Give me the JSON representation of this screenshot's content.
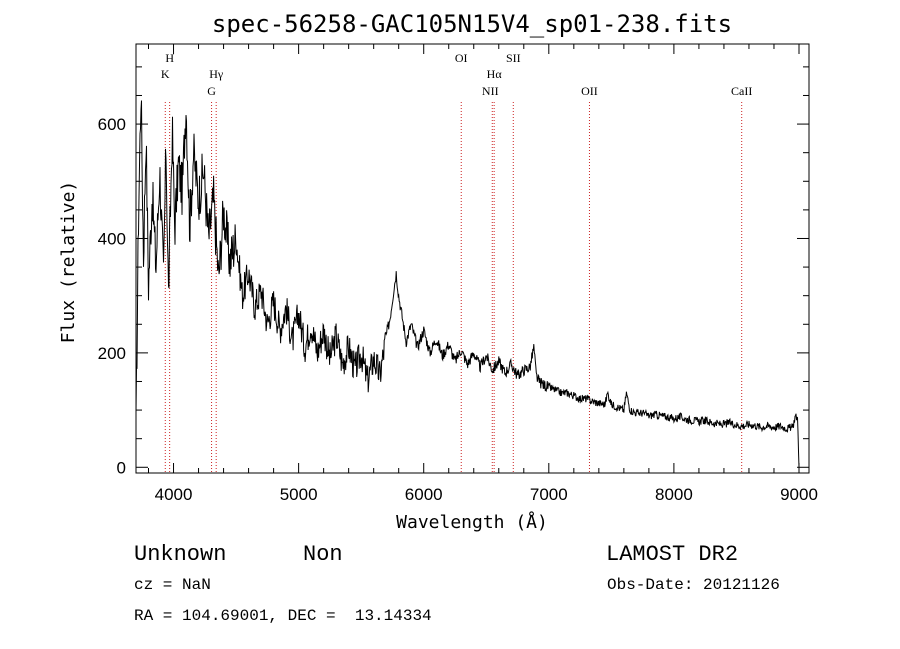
{
  "chart_data": {
    "type": "line",
    "title": "spec-56258-GAC105N15V4_sp01-238.fits",
    "xlabel": "Wavelength (Å)",
    "ylabel": "Flux (relative)",
    "xlim": [
      3700,
      9080
    ],
    "ylim": [
      -10,
      740
    ],
    "xticks": [
      4000,
      5000,
      6000,
      7000,
      8000,
      9000
    ],
    "yticks": [
      0,
      200,
      400,
      600
    ],
    "grid": false,
    "series": [
      {
        "x": [
          3700,
          3720,
          3740,
          3760,
          3780,
          3800,
          3830,
          3860,
          3890,
          3920,
          3940,
          3960,
          3990,
          4010,
          4040,
          4070,
          4100,
          4130,
          4160,
          4200,
          4240,
          4280,
          4320,
          4360,
          4400,
          4450,
          4500,
          4550,
          4600,
          4650,
          4700,
          4750,
          4800,
          4850,
          4900,
          4950,
          5000,
          5050,
          5100,
          5150,
          5200,
          5250,
          5300,
          5350,
          5400,
          5450,
          5500,
          5550,
          5600,
          5650,
          5700,
          5730,
          5760,
          5780,
          5800,
          5830,
          5860,
          5900,
          5950,
          6000,
          6050,
          6100,
          6150,
          6200,
          6250,
          6300,
          6350,
          6400,
          6450,
          6500,
          6550,
          6600,
          6650,
          6700,
          6750,
          6800,
          6850,
          6880,
          6900,
          6920,
          6950,
          7000,
          7050,
          7100,
          7150,
          7200,
          7250,
          7300,
          7350,
          7400,
          7450,
          7470,
          7500,
          7550,
          7600,
          7620,
          7650,
          7700,
          7750,
          7800,
          7850,
          7900,
          7950,
          8000,
          8050,
          8100,
          8150,
          8200,
          8250,
          8300,
          8350,
          8400,
          8450,
          8500,
          8550,
          8600,
          8650,
          8700,
          8750,
          8800,
          8850,
          8900,
          8950,
          8970,
          8990,
          9000
        ],
        "y": [
          60,
          440,
          660,
          370,
          580,
          320,
          480,
          350,
          520,
          330,
          560,
          300,
          590,
          420,
          530,
          480,
          640,
          420,
          550,
          470,
          520,
          400,
          470,
          330,
          450,
          360,
          400,
          300,
          340,
          280,
          310,
          250,
          290,
          240,
          280,
          220,
          270,
          210,
          250,
          200,
          240,
          190,
          230,
          180,
          210,
          170,
          200,
          150,
          190,
          160,
          230,
          260,
          310,
          340,
          300,
          260,
          220,
          250,
          210,
          240,
          200,
          225,
          195,
          215,
          185,
          205,
          180,
          200,
          175,
          195,
          170,
          185,
          165,
          180,
          160,
          170,
          175,
          210,
          160,
          150,
          145,
          140,
          135,
          130,
          130,
          125,
          120,
          120,
          115,
          112,
          110,
          130,
          110,
          105,
          100,
          130,
          100,
          95,
          95,
          90,
          92,
          90,
          88,
          85,
          88,
          84,
          82,
          80,
          82,
          78,
          76,
          75,
          78,
          74,
          72,
          75,
          73,
          70,
          72,
          70,
          72,
          68,
          70,
          90,
          85,
          0
        ]
      }
    ],
    "line_markers": [
      {
        "x": 3934,
        "label": "K"
      },
      {
        "x": 3969,
        "label": "H"
      },
      {
        "x": 4304,
        "label": "G"
      },
      {
        "x": 4341,
        "label": "Hγ"
      },
      {
        "x": 6300,
        "label": "OI"
      },
      {
        "x": 6548,
        "label": "NII"
      },
      {
        "x": 6563,
        "label": "Hα"
      },
      {
        "x": 6716,
        "label": "SII"
      },
      {
        "x": 7325,
        "label": "OII"
      },
      {
        "x": 8542,
        "label": "CaII"
      }
    ]
  },
  "info": {
    "object_class": "Unknown",
    "subclass": "Non",
    "survey": "LAMOST DR2",
    "redshift": "cz = NaN",
    "obs_date": "Obs-Date: 20121126",
    "coords": "RA = 104.69001, DEC =  13.14334"
  },
  "colors": {
    "spectrum": "#000000",
    "line_marker": "#cc2222",
    "frame": "#000000"
  }
}
